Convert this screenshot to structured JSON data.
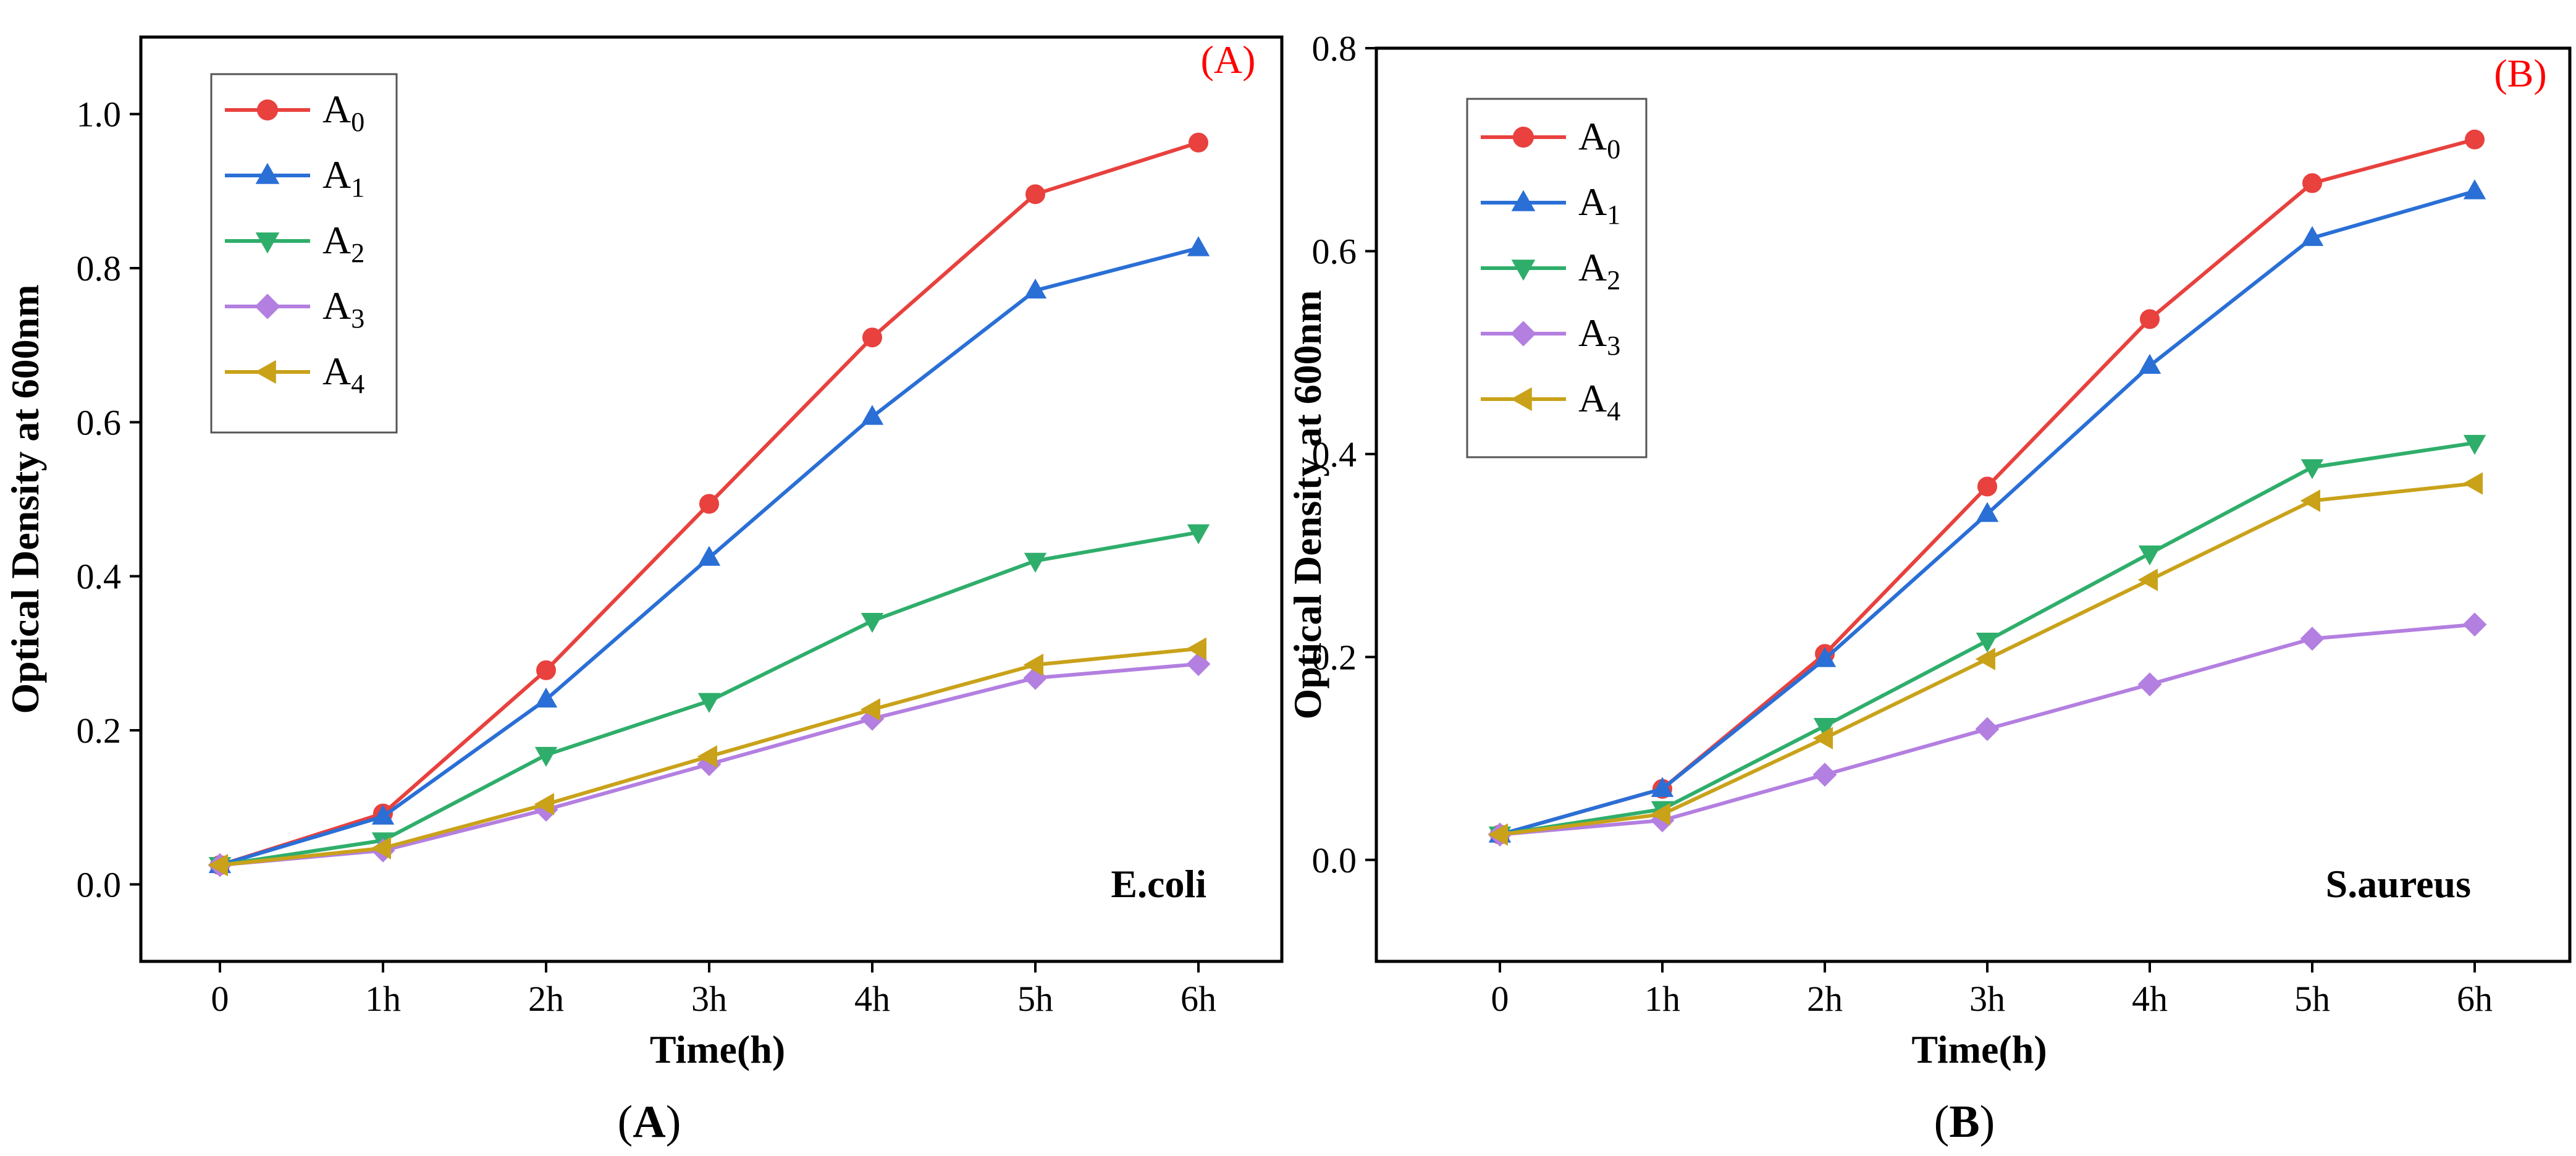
{
  "colors": {
    "A0": "#e8413e",
    "A1": "#2a6fd6",
    "A2": "#2fae6b",
    "A3": "#b37fe0",
    "A4": "#c9a21a"
  },
  "chart_data": [
    {
      "type": "line",
      "panel_tag": "(A)",
      "caption_letter": "A",
      "inset_label": "E.coli",
      "xlabel": "Time(h)",
      "ylabel": "Optical Density at 600nm",
      "categories": [
        "0",
        "1h",
        "2h",
        "3h",
        "4h",
        "5h",
        "6h"
      ],
      "ylim": [
        -0.1,
        1.1
      ],
      "yticks": [
        0.0,
        0.2,
        0.4,
        0.6,
        0.8,
        1.0
      ],
      "ytick_labels": [
        "0.0",
        "0.2",
        "0.4",
        "0.6",
        "0.8",
        "1.0"
      ],
      "legend_position": "top-left",
      "series": [
        {
          "key": "A0",
          "name": "A",
          "sub": "0",
          "marker": "circle",
          "values": [
            0.025,
            0.092,
            0.278,
            0.494,
            0.71,
            0.896,
            0.963
          ]
        },
        {
          "key": "A1",
          "name": "A",
          "sub": "1",
          "marker": "triangle-up",
          "values": [
            0.025,
            0.088,
            0.24,
            0.424,
            0.607,
            0.771,
            0.826
          ]
        },
        {
          "key": "A2",
          "name": "A",
          "sub": "2",
          "marker": "triangle-down",
          "values": [
            0.025,
            0.057,
            0.168,
            0.238,
            0.342,
            0.42,
            0.457
          ]
        },
        {
          "key": "A3",
          "name": "A",
          "sub": "3",
          "marker": "diamond",
          "values": [
            0.025,
            0.044,
            0.097,
            0.156,
            0.215,
            0.268,
            0.286
          ]
        },
        {
          "key": "A4",
          "name": "A",
          "sub": "4",
          "marker": "triangle-left",
          "values": [
            0.025,
            0.047,
            0.104,
            0.166,
            0.227,
            0.285,
            0.306
          ]
        }
      ]
    },
    {
      "type": "line",
      "panel_tag": "(B)",
      "caption_letter": "B",
      "inset_label": "S.aureus",
      "xlabel": "Time(h)",
      "ylabel": "Optical Density at 600nm",
      "categories": [
        "0",
        "1h",
        "2h",
        "3h",
        "4h",
        "5h",
        "6h"
      ],
      "ylim": [
        -0.1,
        0.8
      ],
      "yticks": [
        0.0,
        0.2,
        0.4,
        0.6,
        0.8
      ],
      "ytick_labels": [
        "0.0",
        "0.2",
        "0.4",
        "0.6",
        "0.8"
      ],
      "legend_position": "top-left",
      "series": [
        {
          "key": "A0",
          "name": "A",
          "sub": "0",
          "marker": "circle",
          "values": [
            0.025,
            0.07,
            0.203,
            0.368,
            0.533,
            0.667,
            0.71
          ]
        },
        {
          "key": "A1",
          "name": "A",
          "sub": "1",
          "marker": "triangle-up",
          "values": [
            0.025,
            0.07,
            0.198,
            0.341,
            0.487,
            0.613,
            0.659
          ]
        },
        {
          "key": "A2",
          "name": "A",
          "sub": "2",
          "marker": "triangle-down",
          "values": [
            0.025,
            0.05,
            0.132,
            0.216,
            0.302,
            0.387,
            0.411
          ]
        },
        {
          "key": "A3",
          "name": "A",
          "sub": "3",
          "marker": "diamond",
          "values": [
            0.025,
            0.039,
            0.084,
            0.129,
            0.173,
            0.218,
            0.232
          ]
        },
        {
          "key": "A4",
          "name": "A",
          "sub": "4",
          "marker": "triangle-left",
          "values": [
            0.025,
            0.045,
            0.12,
            0.198,
            0.276,
            0.354,
            0.371
          ]
        }
      ]
    }
  ]
}
